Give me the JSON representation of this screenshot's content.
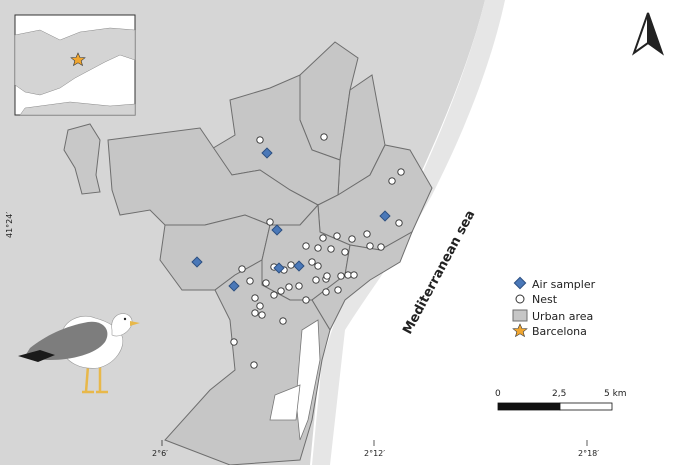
{
  "sea_label": "Mediterranean sea",
  "lat_ticks": [
    {
      "label": "41°24′"
    }
  ],
  "lon_ticks": [
    {
      "label": "2°6′"
    },
    {
      "label": "2°12′"
    },
    {
      "label": "2°18′"
    }
  ],
  "legend": {
    "air_sampler": "Air sampler",
    "nest": "Nest",
    "urban_area": "Urban area",
    "barcelona": "Barcelona"
  },
  "scale_bar": {
    "labels": [
      "0",
      "2,5",
      "5 km"
    ]
  },
  "north_arrow": "north-arrow-icon",
  "colors": {
    "land": "#d4d4d4",
    "urban": "#c8c8c8",
    "district_border": "#777777",
    "sea": "#ffffff",
    "air_sampler": "#4a78b8",
    "nest": "#ffffff",
    "star": "#f0a630"
  }
}
